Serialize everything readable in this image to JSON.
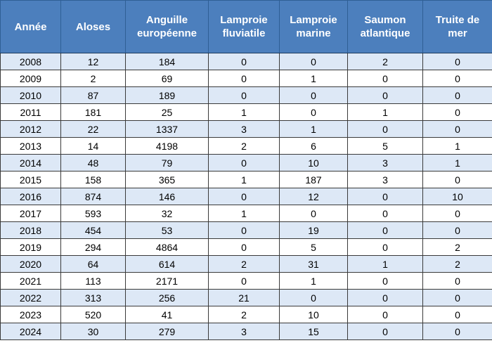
{
  "table": {
    "headers": [
      "Année",
      "Aloses",
      "Anguille européenne",
      "Lamproie fluviatile",
      "Lamproie marine",
      "Saumon atlantique",
      "Truite de mer"
    ],
    "rows": [
      [
        "2008",
        "12",
        "184",
        "0",
        "0",
        "2",
        "0"
      ],
      [
        "2009",
        "2",
        "69",
        "0",
        "1",
        "0",
        "0"
      ],
      [
        "2010",
        "87",
        "189",
        "0",
        "0",
        "0",
        "0"
      ],
      [
        "2011",
        "181",
        "25",
        "1",
        "0",
        "1",
        "0"
      ],
      [
        "2012",
        "22",
        "1337",
        "3",
        "1",
        "0",
        "0"
      ],
      [
        "2013",
        "14",
        "4198",
        "2",
        "6",
        "5",
        "1"
      ],
      [
        "2014",
        "48",
        "79",
        "0",
        "10",
        "3",
        "1"
      ],
      [
        "2015",
        "158",
        "365",
        "1",
        "187",
        "3",
        "0"
      ],
      [
        "2016",
        "874",
        "146",
        "0",
        "12",
        "0",
        "10"
      ],
      [
        "2017",
        "593",
        "32",
        "1",
        "0",
        "0",
        "0"
      ],
      [
        "2018",
        "454",
        "53",
        "0",
        "19",
        "0",
        "0"
      ],
      [
        "2019",
        "294",
        "4864",
        "0",
        "5",
        "0",
        "2"
      ],
      [
        "2020",
        "64",
        "614",
        "2",
        "31",
        "1",
        "2"
      ],
      [
        "2021",
        "113",
        "2171",
        "0",
        "1",
        "0",
        "0"
      ],
      [
        "2022",
        "313",
        "256",
        "21",
        "0",
        "0",
        "0"
      ],
      [
        "2023",
        "520",
        "41",
        "2",
        "10",
        "0",
        "0"
      ],
      [
        "2024",
        "30",
        "279",
        "3",
        "15",
        "0",
        "0"
      ]
    ]
  },
  "colors": {
    "header_bg": "#4c7fbd",
    "header_text": "#ffffff",
    "stripe": "#dde8f6",
    "border": "#3a3a3a"
  }
}
